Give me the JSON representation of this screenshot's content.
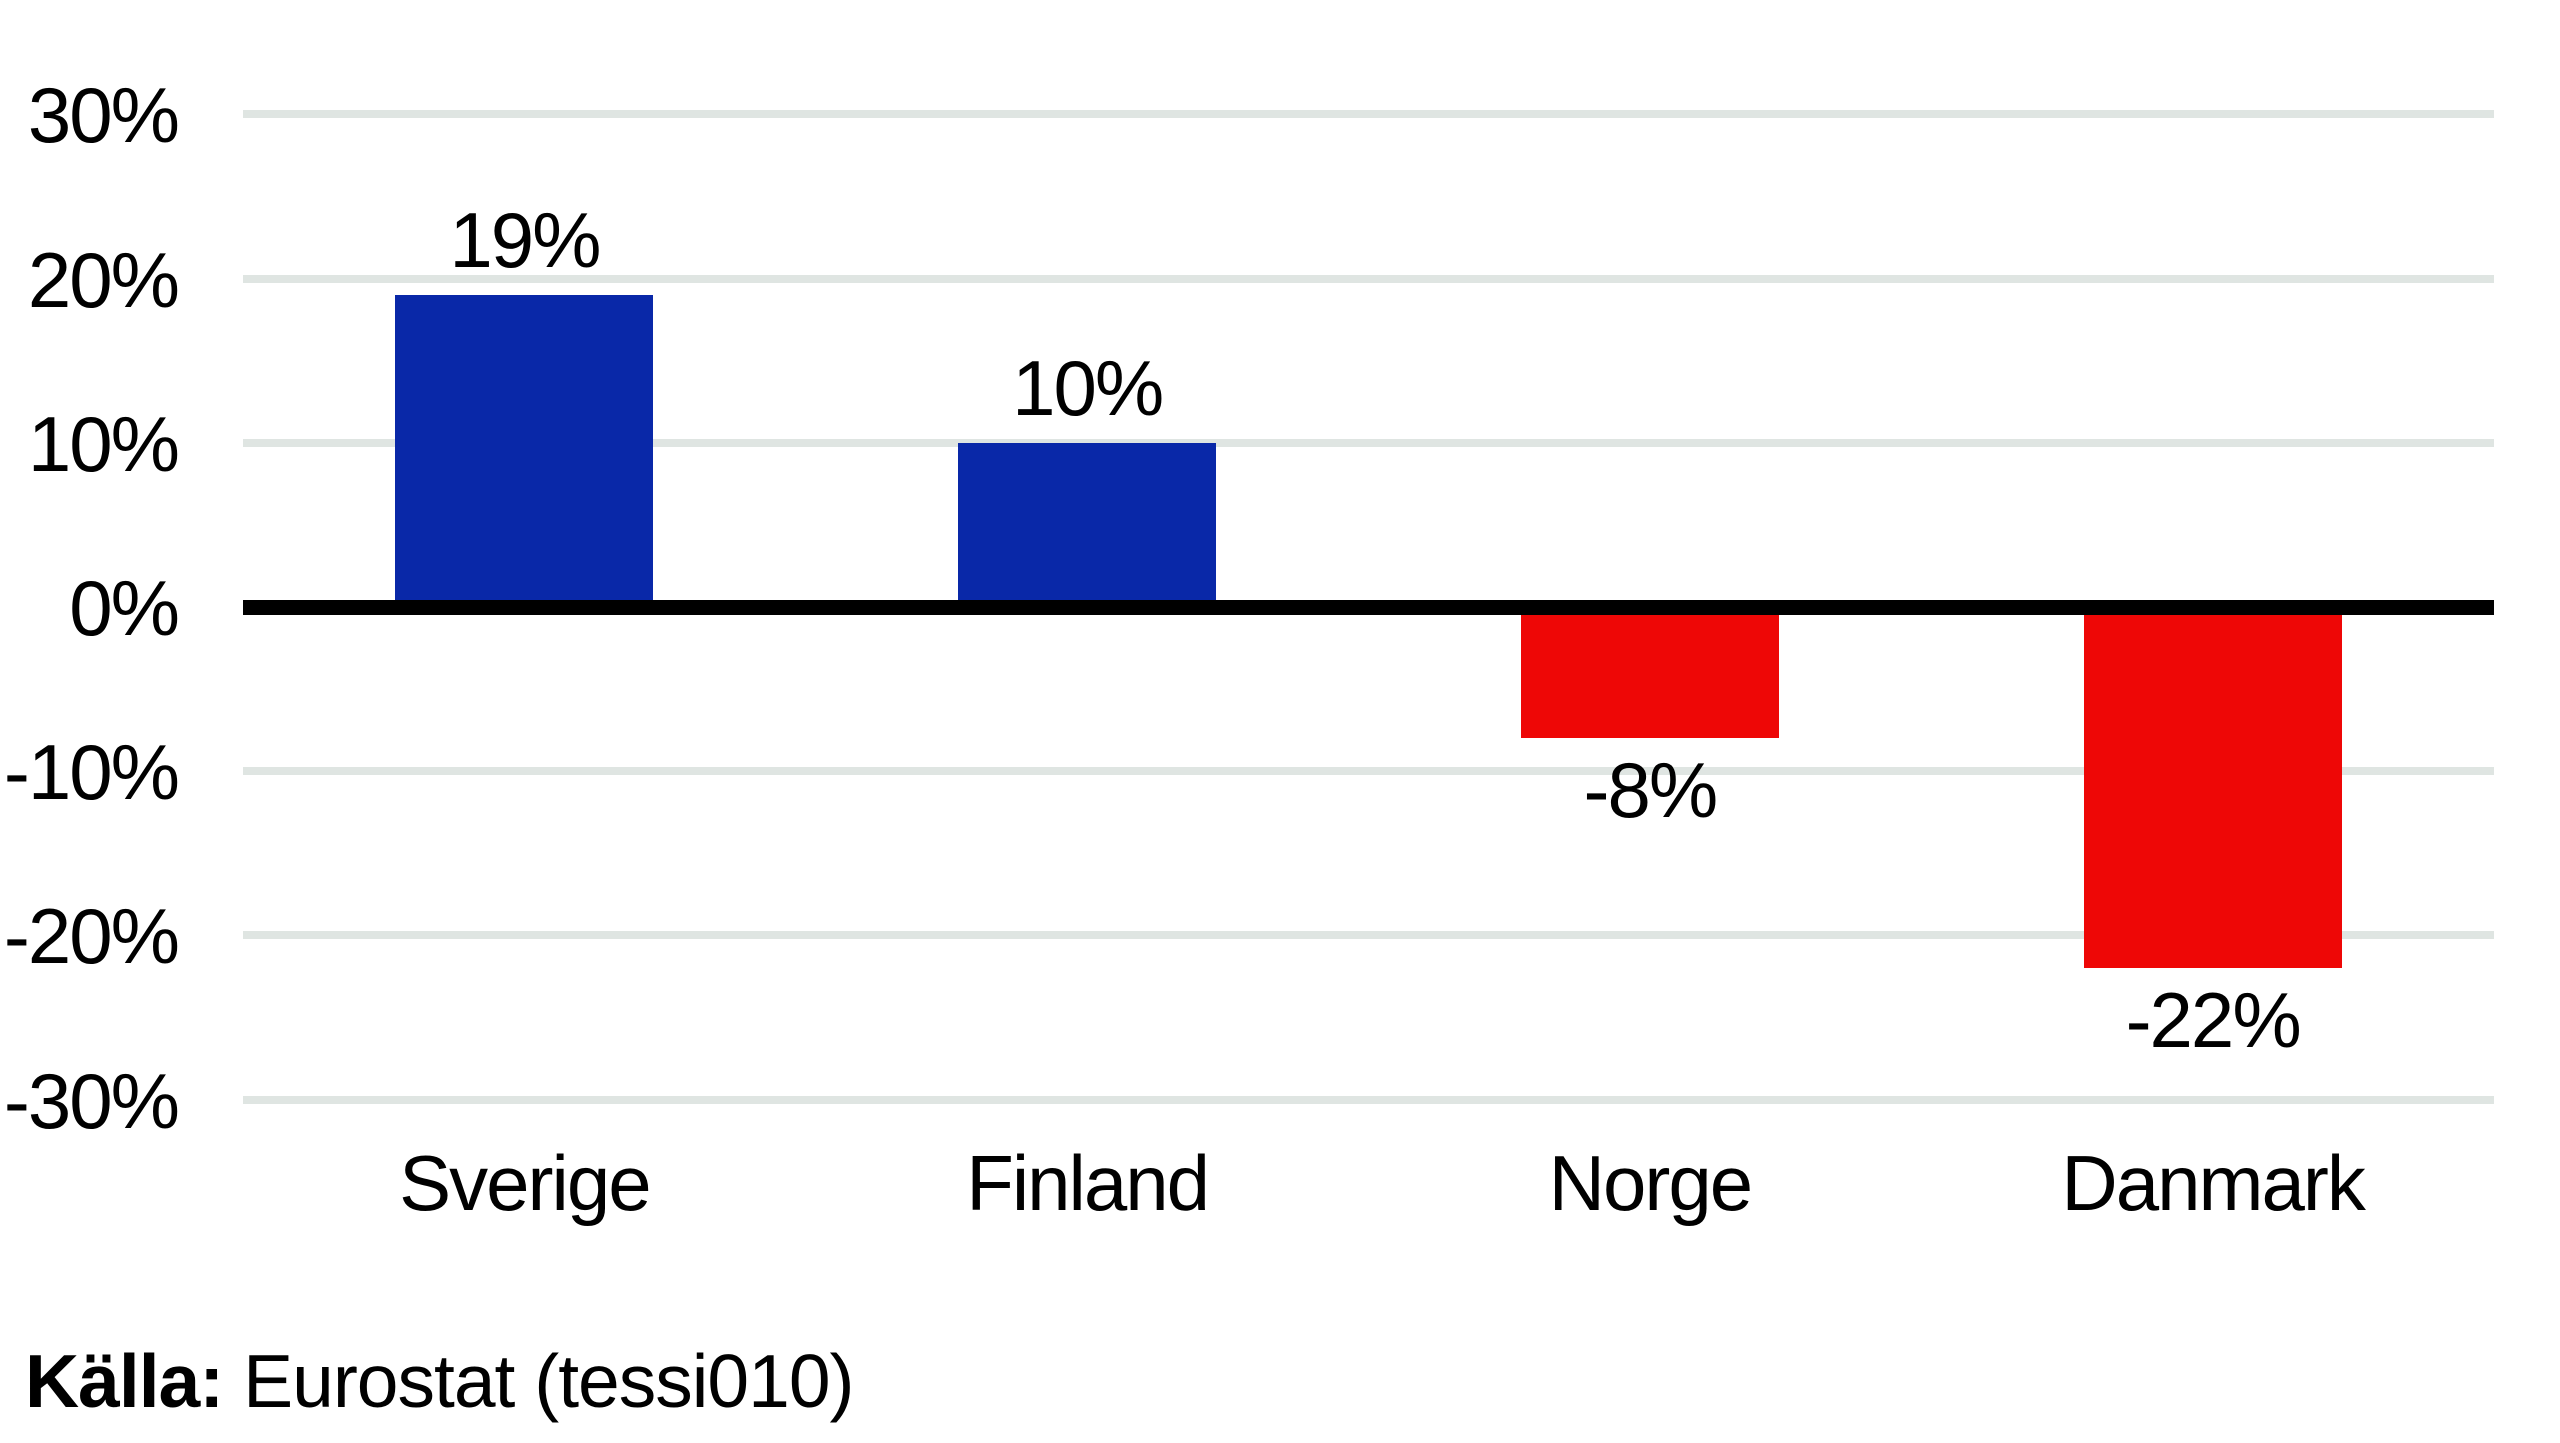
{
  "chart_data": {
    "type": "bar",
    "title": "",
    "categories": [
      "Sverige",
      "Finland",
      "Norge",
      "Danmark"
    ],
    "values": [
      19,
      10,
      -8,
      -22
    ],
    "bar_labels": [
      "19%",
      "10%",
      "-8%",
      "-22%"
    ],
    "bar_colors": [
      "#0928A8",
      "#0928A8",
      "#EE0706",
      "#EE0706"
    ],
    "xlabel": "",
    "ylabel": "",
    "ylim": [
      -30,
      30
    ],
    "y_ticks": [
      30,
      20,
      10,
      0,
      -10,
      -20,
      -30
    ],
    "y_tick_labels": [
      "30%",
      "20%",
      "10%",
      "0%",
      "-10%",
      "-20%",
      "-30%"
    ],
    "grid": "horizontal",
    "legend": "none",
    "zero_line": true,
    "annotations": "value labels outside bar ends"
  },
  "source_line": {
    "prefix_bold": "Källa:",
    "text": " Eurostat (tessi010)"
  },
  "colors": {
    "background": "#FFFFFF",
    "bar_positive": "#0928A8",
    "bar_negative": "#EE0706",
    "gridline": "#DFE5E2",
    "zero_axis": "#000000",
    "text": "#000000"
  }
}
